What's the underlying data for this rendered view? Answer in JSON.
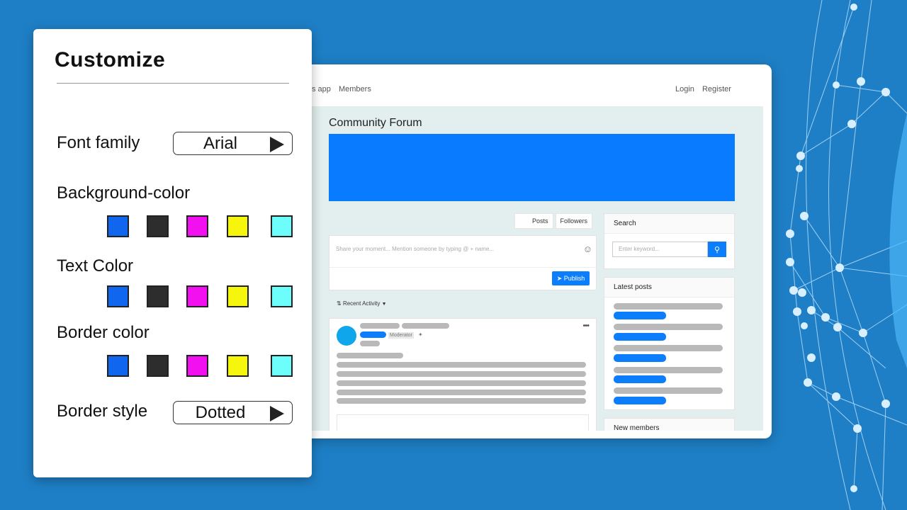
{
  "forum": {
    "nav_left": [
      "s app",
      "Members"
    ],
    "nav_right": [
      "Login",
      "Register"
    ],
    "title": "Community Forum",
    "banner_color": "#087bfe",
    "tabs": [
      "Posts",
      "Followers"
    ],
    "share_placeholder": "Share your moment... Mention someone by typing @ + name...",
    "emoji_icon": "☺",
    "publish_label": "Publish",
    "recent_activity_label": "Recent Activity",
    "moderator_badge": "Moderator",
    "search_heading": "Search",
    "search_placeholder": "Enter keyword...",
    "search_icon": "search-icon",
    "latest_posts_heading": "Latest posts",
    "new_members_heading": "New members"
  },
  "customize": {
    "title": "Customize",
    "font_family": {
      "label": "Font family",
      "value": "Arial"
    },
    "background_color": {
      "label": "Background-color",
      "colors": [
        "#1166f0",
        "#2d2d2d",
        "#f20ff0",
        "#f6f60c",
        "#6dfdfb"
      ]
    },
    "text_color": {
      "label": "Text Color",
      "colors": [
        "#1166f0",
        "#2d2d2d",
        "#f20ff0",
        "#f6f60c",
        "#6dfdfb"
      ]
    },
    "border_color": {
      "label": "Border color",
      "colors": [
        "#1166f0",
        "#2d2d2d",
        "#f20ff0",
        "#f6f60c",
        "#6dfdfb"
      ]
    },
    "border_style": {
      "label": "Border style",
      "value": "Dotted"
    }
  },
  "theme": {
    "background": "#1e7fc6",
    "accent": "#0d7efb"
  }
}
